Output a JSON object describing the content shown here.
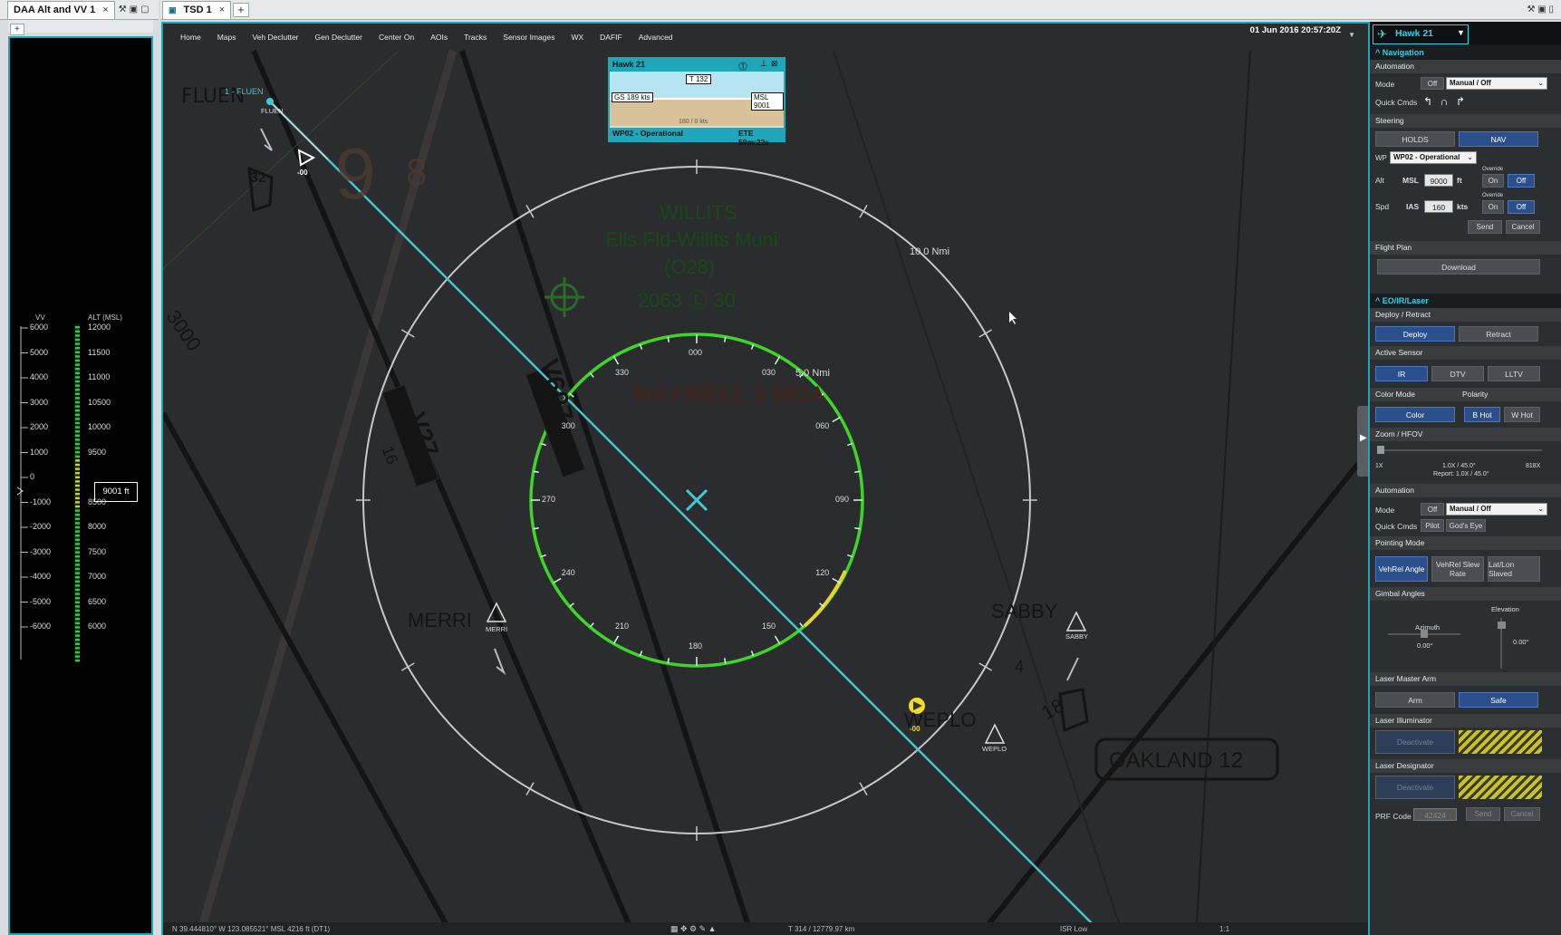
{
  "left_tabs": {
    "tab_label": "DAA Alt and VV 1",
    "close": "×"
  },
  "main_tabs": {
    "tab_label": "TSD 1",
    "close": "×"
  },
  "menu": [
    "Home",
    "Maps",
    "Veh Declutter",
    "Gen Declutter",
    "Center On",
    "AOIs",
    "Tracks",
    "Sensor Images",
    "WX",
    "DAFIF",
    "Advanced"
  ],
  "datetime": "01 Jun 2016 20:57:20Z",
  "vv_panel": {
    "vv_label": "VV",
    "alt_label": "ALT (MSL)",
    "vv_ticks": [
      "6000",
      "5000",
      "4000",
      "3000",
      "2000",
      "1000",
      "0",
      "-1000",
      "-2000",
      "-3000",
      "-4000",
      "-5000",
      "-6000"
    ],
    "alt_ticks": [
      "12000",
      "11500",
      "11000",
      "10500",
      "10000",
      "9500",
      "9001 ft",
      "8500",
      "8000",
      "7500",
      "7000",
      "6500",
      "6000"
    ],
    "current_alt": "9001 ft"
  },
  "hawk_box": {
    "title": "Hawk 21",
    "heading": "T 132",
    "gs": "GS 189 kts",
    "msl": "MSL 9001",
    "wind": "180 / 0 kts",
    "wp": "WP02 - Operational",
    "ete": "ETE 59m:22s"
  },
  "map": {
    "fluen_label": "FLUEN",
    "fluen_wp": "1 - FLUEN",
    "fluen_small": "FLUEN",
    "nmi10": "10.0 Nmi",
    "nmi5": "5.0 Nmi",
    "airport_name": "WILLITS",
    "airport_full": "Ells Fld-Willits Muni",
    "airport_code": "(O28)",
    "airport_info": "2063 Ⓛ 30",
    "moa": "MAXWELL 3 MOA",
    "compass": [
      "000",
      "030",
      "060",
      "090",
      "120",
      "150",
      "180",
      "210",
      "240",
      "270",
      "300",
      "330"
    ],
    "merri": "MERRI",
    "merri_small": "MERRI",
    "sabby": "SABBY",
    "sabby_small": "SABBY",
    "weplo": "WEPLO",
    "weplo_small": "WEPLO",
    "oakland": "OAKLAND 12",
    "v607": "V607",
    "v27": "V27",
    "r32": "32",
    "r18": "18",
    "r16": "16",
    "r8": "8",
    "r9": "9",
    "r4": "4",
    "r3000": "3000",
    "r00": "00",
    "track_alt": "-00",
    "target_alt": "-00"
  },
  "statusbar": {
    "coords": "N 39.444810° W 123.085521° MSL 4216 ft (DT1)",
    "track": "T 314 / 12779.97 km",
    "isr": "ISR Low",
    "scale": "1:1"
  },
  "right_panel": {
    "vehicle": "Hawk 21",
    "navigation": "Navigation",
    "automation": "Automation",
    "mode_label": "Mode",
    "mode_off": "Off",
    "mode_value": "Manual / Off",
    "quick_cmds": "Quick Cmds",
    "steering": "Steering",
    "holds": "HOLDS",
    "nav": "NAV",
    "wp_label": "WP",
    "wp_value": "WP02 - Operational",
    "alt_label": "Alt",
    "msl": "MSL",
    "alt_value": "9000",
    "ft": "ft",
    "override": "Override",
    "on": "On",
    "off": "Off",
    "spd_label": "Spd",
    "ias": "IAS",
    "spd_value": "160",
    "kts": "kts",
    "send": "Send",
    "cancel": "Cancel",
    "flight_plan": "Flight Plan",
    "download": "Download",
    "eo": "EO/IR/Laser",
    "deploy_retract": "Deploy / Retract",
    "deploy": "Deploy",
    "retract": "Retract",
    "active_sensor": "Active Sensor",
    "ir": "IR",
    "dtv": "DTV",
    "lltv": "LLTV",
    "color_mode": "Color Mode",
    "polarity": "Polarity",
    "color": "Color",
    "b_hot": "B Hot",
    "w_hot": "W Hot",
    "zoom": "Zoom / HFOV",
    "zoom_min": "1X",
    "zoom_max": "818X",
    "zoom_value": "1.0X / 45.0°",
    "zoom_report": "Report: 1.0X / 45.0°",
    "automation2": "Automation",
    "mode2_off": "Off",
    "mode2_value": "Manual / Off",
    "pilot": "Pilot",
    "gods_eye": "God's Eye",
    "pointing_mode": "Pointing Mode",
    "vehrel_angle": "VehRel Angle",
    "vehrel_slew": "VehRel Slew Rate",
    "latlon": "Lat/Lon Slaved",
    "gimbal": "Gimbal Angles",
    "azimuth": "Azimuth",
    "az_value": "0.00°",
    "elevation": "Elevation",
    "el_value": "0.00°",
    "laser_master": "Laser Master Arm",
    "arm": "Arm",
    "safe": "Safe",
    "laser_illum": "Laser Illuminator",
    "deactivate": "Deactivate",
    "laser_desig": "Laser Designator",
    "deactivate2": "Deactivate",
    "prf_code": "PRF Code",
    "prf_value": "42424",
    "send2": "Send",
    "cancel2": "Cancel"
  }
}
